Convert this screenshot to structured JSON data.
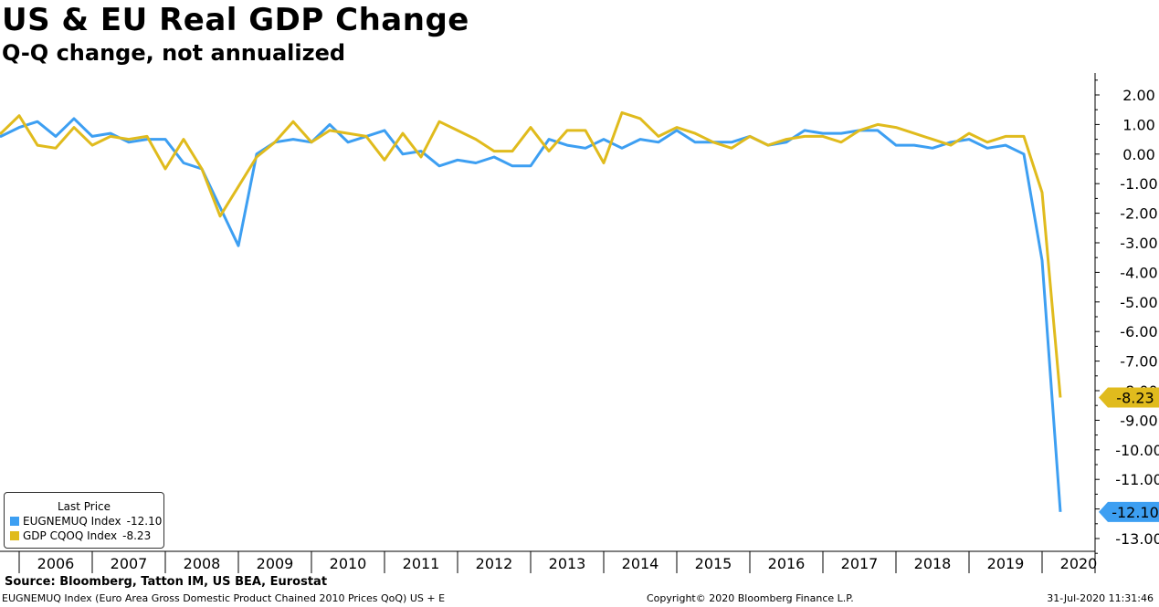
{
  "title": "US & EU Real GDP Change",
  "subtitle": "Q-Q change, not annualized",
  "legend": {
    "title": "Last Price",
    "items": [
      {
        "label": "EUGNEMUQ Index",
        "value": "-12.10",
        "color": "#3d9ff2"
      },
      {
        "label": "GDP CQOQ Index",
        "value": "-8.23",
        "color": "#e0bb1d"
      }
    ]
  },
  "source": "Source: Bloomberg, Tatton IM, US BEA, Eurostat",
  "footer": {
    "left": "EUGNEMUQ Index (Euro Area Gross Domestic Product Chained 2010 Prices QoQ) US + E",
    "middle": "Copyright© 2020 Bloomberg Finance L.P.",
    "right": "31-Jul-2020 11:31:46"
  },
  "chart_data": {
    "type": "line",
    "title": "US & EU Real GDP Change",
    "subtitle": "Q-Q change, not annualized",
    "x_unit": "quarter",
    "x_start": "2005-Q3",
    "x_end": "2020-Q2",
    "x_tick_labels": [
      "2006",
      "2007",
      "2008",
      "2009",
      "2010",
      "2011",
      "2012",
      "2013",
      "2014",
      "2015",
      "2016",
      "2017",
      "2018",
      "2019",
      "2020"
    ],
    "y_tick_labels": [
      "2.00",
      "1.00",
      "0.00",
      "-1.00",
      "-2.00",
      "-3.00",
      "-4.00",
      "-5.00",
      "-6.00",
      "-7.00",
      "-8.00",
      "-9.00",
      "-10.00",
      "-11.00",
      "-12.00",
      "-13.00"
    ],
    "ylim": [
      -13.5,
      2.5
    ],
    "y_axis_side": "right",
    "grid": false,
    "legend_position": "bottom-left",
    "series": [
      {
        "name": "EUGNEMUQ Index",
        "color": "#3d9ff2",
        "last_value_label": "-12.10",
        "values": [
          0.7,
          0.6,
          0.9,
          1.1,
          0.6,
          1.2,
          0.6,
          0.7,
          0.4,
          0.5,
          0.5,
          -0.3,
          -0.5,
          -1.8,
          -3.1,
          0.0,
          0.4,
          0.5,
          0.4,
          1.0,
          0.4,
          0.6,
          0.8,
          0.0,
          0.1,
          -0.4,
          -0.2,
          -0.3,
          -0.1,
          -0.4,
          -0.4,
          0.5,
          0.3,
          0.2,
          0.5,
          0.2,
          0.5,
          0.4,
          0.8,
          0.4,
          0.4,
          0.4,
          0.6,
          0.3,
          0.4,
          0.8,
          0.7,
          0.7,
          0.8,
          0.8,
          0.3,
          0.3,
          0.2,
          0.4,
          0.5,
          0.2,
          0.3,
          0.0,
          -3.6,
          -12.1
        ]
      },
      {
        "name": "GDP CQOQ Index",
        "color": "#e0bb1d",
        "last_value_label": "-8.23",
        "values": [
          0.9,
          0.7,
          1.3,
          0.3,
          0.2,
          0.9,
          0.3,
          0.6,
          0.5,
          0.6,
          -0.5,
          0.5,
          -0.5,
          -2.1,
          -1.1,
          -0.1,
          0.4,
          1.1,
          0.4,
          0.8,
          0.7,
          0.6,
          -0.2,
          0.7,
          -0.1,
          1.1,
          0.8,
          0.5,
          0.1,
          0.1,
          0.9,
          0.1,
          0.8,
          0.8,
          -0.3,
          1.4,
          1.2,
          0.6,
          0.9,
          0.7,
          0.4,
          0.2,
          0.6,
          0.3,
          0.5,
          0.6,
          0.6,
          0.4,
          0.8,
          1.0,
          0.9,
          0.7,
          0.5,
          0.3,
          0.7,
          0.4,
          0.6,
          0.6,
          -1.3,
          -8.23
        ]
      }
    ]
  }
}
